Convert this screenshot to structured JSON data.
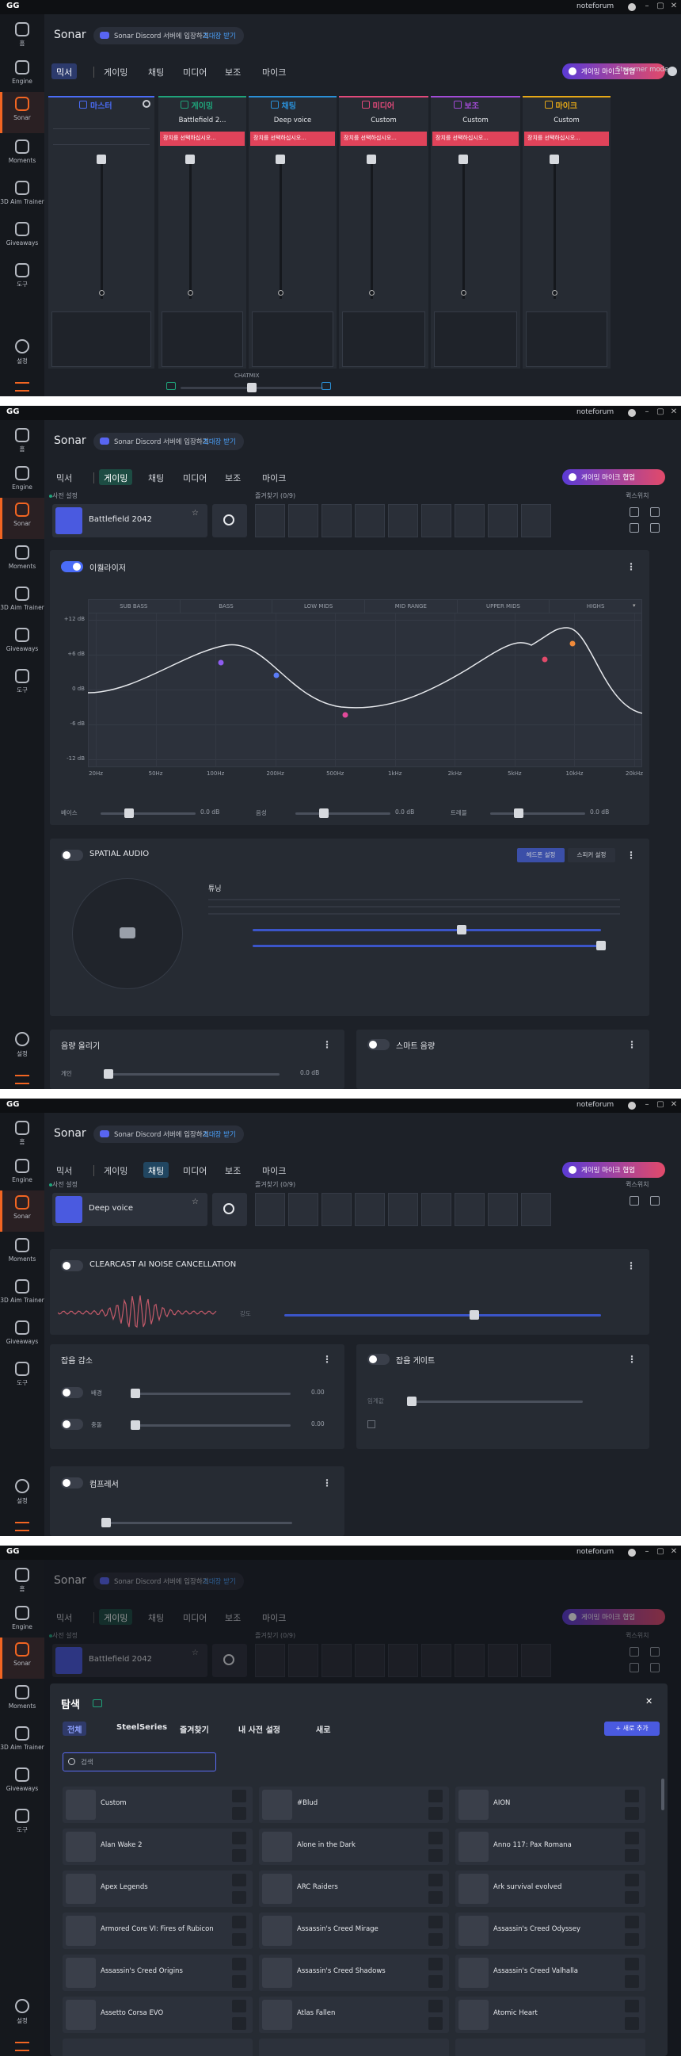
{
  "app": {
    "logo": "GG",
    "user": "noteforum",
    "nav": [
      "홈",
      "Engine",
      "Sonar",
      "Moments",
      "3D Aim Trainer",
      "Giveaways",
      "도구"
    ],
    "settings": "설정",
    "title": "Sonar",
    "discord": "Sonar Discord 서버에 입장하기",
    "invite": "초대장 받기",
    "tabs": [
      "믹서",
      "게이밍",
      "채팅",
      "미디어",
      "보조",
      "마이크"
    ],
    "promo": "게이밍 마이크 협업",
    "streamer": "Streamer mode",
    "preset_label": "사전 설정",
    "favorites": "즐겨찾기 (0/9)",
    "quick": "퀵스위치"
  },
  "mixer": {
    "channels": [
      {
        "name": "마스터"
      },
      {
        "name": "게이밍",
        "preset": "Battlefield 2..."
      },
      {
        "name": "채팅",
        "preset": "Deep voice"
      },
      {
        "name": "미디어",
        "preset": "Custom"
      },
      {
        "name": "보조",
        "preset": "Custom"
      },
      {
        "name": "마이크",
        "preset": "Custom"
      }
    ],
    "warning": "장치를 선택하십시오...",
    "chatmix": "CHATMIX"
  },
  "gaming": {
    "preset": "Battlefield 2042",
    "eq": {
      "title": "이퀄라이저",
      "bands": [
        "SUB BASS",
        "BASS",
        "LOW MIDS",
        "MID RANGE",
        "UPPER MIDS",
        "HIGHS"
      ],
      "y_labels": [
        "+12 dB",
        "+6 dB",
        "0 dB",
        "-6 dB",
        "-12 dB"
      ],
      "x_labels": [
        "20Hz",
        "50Hz",
        "100Hz",
        "200Hz",
        "500Hz",
        "1kHz",
        "2kHz",
        "5kHz",
        "10kHz",
        "20kHz"
      ]
    },
    "sliders": [
      {
        "label": "베이스",
        "value": "0.0 dB"
      },
      {
        "label": "음성",
        "value": "0.0 dB"
      },
      {
        "label": "트레블",
        "value": "0.0 dB"
      }
    ],
    "spatial": {
      "title": "SPATIAL AUDIO",
      "modes": [
        "헤드폰 설정",
        "스피커 설정"
      ],
      "tuning": "튜닝"
    },
    "boost": {
      "title": "음량 올리기",
      "label": "게인",
      "value": "0.0 dB"
    },
    "smart": "스마트 음량"
  },
  "chat": {
    "preset": "Deep voice",
    "clearcast": {
      "title": "CLEARCAST AI NOISE CANCELLATION",
      "label": "강도"
    },
    "noise": {
      "title": "잡음 감소",
      "rows": [
        {
          "label": "배경",
          "value": "0.00"
        },
        {
          "label": "충돌",
          "value": "0.00"
        }
      ]
    },
    "gate": {
      "title": "잡음 게이트",
      "label": "임계값"
    },
    "compressor": "컴프레서"
  },
  "browse": {
    "title": "탐색",
    "tabs": [
      "전체",
      "SteelSeries",
      "즐겨찾기",
      "내 사전 설정",
      "새로"
    ],
    "add": "+ 새로 추가",
    "search": "검색",
    "items": [
      "Custom",
      "#Blud",
      "AION",
      "Alan Wake 2",
      "Alone in the Dark",
      "Anno 117: Pax Romana",
      "Apex Legends",
      "ARC Raiders",
      "Ark survival evolved",
      "Armored Core VI: Fires of Rubicon",
      "Assassin's Creed Mirage",
      "Assassin's Creed Odyssey",
      "Assassin's Creed Origins",
      "Assassin's Creed Shadows",
      "Assassin's Creed Valhalla",
      "Assetto Corsa EVO",
      "Atlas Fallen",
      "Atomic Heart"
    ]
  }
}
